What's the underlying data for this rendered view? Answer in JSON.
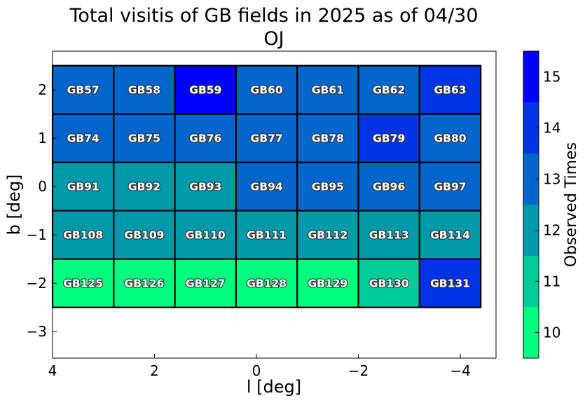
{
  "chart_data": {
    "type": "heatmap",
    "title": "Total visitis of GB fields in 2025 as of 04/30",
    "subtitle": "OJ",
    "xlabel": "l [deg]",
    "ylabel": "b [deg]",
    "xlim": [
      4.0,
      -4.7
    ],
    "ylim": [
      -3.55,
      2.8
    ],
    "xticks": [
      4,
      2,
      0,
      -2,
      -4
    ],
    "xtick_labels": [
      "4",
      "2",
      "0",
      "−2",
      "−4"
    ],
    "yticks": [
      2,
      1,
      0,
      -1,
      -2,
      -3
    ],
    "ytick_labels": [
      "2",
      "1",
      "0",
      "−1",
      "−2",
      "−3"
    ],
    "grid": false,
    "colorbar": {
      "label": "Observed Times",
      "range": [
        9.5,
        15.5
      ],
      "levels": [
        {
          "from": 9.5,
          "to": 10.5,
          "color": "#00ff7f"
        },
        {
          "from": 10.5,
          "to": 11.5,
          "color": "#00cc99"
        },
        {
          "from": 11.5,
          "to": 12.5,
          "color": "#0099aa"
        },
        {
          "from": 12.5,
          "to": 13.5,
          "color": "#0066cc"
        },
        {
          "from": 13.5,
          "to": 14.5,
          "color": "#0033e5"
        },
        {
          "from": 14.5,
          "to": 15.5,
          "color": "#0000ff"
        }
      ],
      "ticks": [
        10,
        11,
        12,
        13,
        14,
        15
      ],
      "tick_labels": [
        "10",
        "11",
        "12",
        "13",
        "14",
        "15"
      ]
    },
    "columns_l": [
      3.4,
      2.2,
      1.0,
      -0.2,
      -1.4,
      -2.6,
      -3.8
    ],
    "rows_b": [
      2,
      1,
      0,
      -1,
      -2
    ],
    "cell_width_deg": 1.2,
    "fields": [
      {
        "name": "GB57",
        "l": 3.4,
        "b": 2,
        "value": 13
      },
      {
        "name": "GB58",
        "l": 2.2,
        "b": 2,
        "value": 13
      },
      {
        "name": "GB59",
        "l": 1.0,
        "b": 2,
        "value": 15
      },
      {
        "name": "GB60",
        "l": -0.2,
        "b": 2,
        "value": 13
      },
      {
        "name": "GB61",
        "l": -1.4,
        "b": 2,
        "value": 13
      },
      {
        "name": "GB62",
        "l": -2.6,
        "b": 2,
        "value": 13
      },
      {
        "name": "GB63",
        "l": -3.8,
        "b": 2,
        "value": 14
      },
      {
        "name": "GB74",
        "l": 3.4,
        "b": 1,
        "value": 13
      },
      {
        "name": "GB75",
        "l": 2.2,
        "b": 1,
        "value": 13
      },
      {
        "name": "GB76",
        "l": 1.0,
        "b": 1,
        "value": 13
      },
      {
        "name": "GB77",
        "l": -0.2,
        "b": 1,
        "value": 13
      },
      {
        "name": "GB78",
        "l": -1.4,
        "b": 1,
        "value": 13
      },
      {
        "name": "GB79",
        "l": -2.6,
        "b": 1,
        "value": 14
      },
      {
        "name": "GB80",
        "l": -3.8,
        "b": 1,
        "value": 13
      },
      {
        "name": "GB91",
        "l": 3.4,
        "b": 0,
        "value": 12
      },
      {
        "name": "GB92",
        "l": 2.2,
        "b": 0,
        "value": 12
      },
      {
        "name": "GB93",
        "l": 1.0,
        "b": 0,
        "value": 12
      },
      {
        "name": "GB94",
        "l": -0.2,
        "b": 0,
        "value": 13
      },
      {
        "name": "GB95",
        "l": -1.4,
        "b": 0,
        "value": 13
      },
      {
        "name": "GB96",
        "l": -2.6,
        "b": 0,
        "value": 13
      },
      {
        "name": "GB97",
        "l": -3.8,
        "b": 0,
        "value": 13
      },
      {
        "name": "GB108",
        "l": 3.4,
        "b": -1,
        "value": 12
      },
      {
        "name": "GB109",
        "l": 2.2,
        "b": -1,
        "value": 12
      },
      {
        "name": "GB110",
        "l": 1.0,
        "b": -1,
        "value": 12
      },
      {
        "name": "GB111",
        "l": -0.2,
        "b": -1,
        "value": 12
      },
      {
        "name": "GB112",
        "l": -1.4,
        "b": -1,
        "value": 12
      },
      {
        "name": "GB113",
        "l": -2.6,
        "b": -1,
        "value": 12
      },
      {
        "name": "GB114",
        "l": -3.8,
        "b": -1,
        "value": 12
      },
      {
        "name": "GB125",
        "l": 3.4,
        "b": -2,
        "value": 10
      },
      {
        "name": "GB126",
        "l": 2.2,
        "b": -2,
        "value": 10
      },
      {
        "name": "GB127",
        "l": 1.0,
        "b": -2,
        "value": 10
      },
      {
        "name": "GB128",
        "l": -0.2,
        "b": -2,
        "value": 10
      },
      {
        "name": "GB129",
        "l": -1.4,
        "b": -2,
        "value": 10
      },
      {
        "name": "GB130",
        "l": -2.6,
        "b": -2,
        "value": 11
      },
      {
        "name": "GB131",
        "l": -3.8,
        "b": -2,
        "value": 14
      }
    ]
  }
}
